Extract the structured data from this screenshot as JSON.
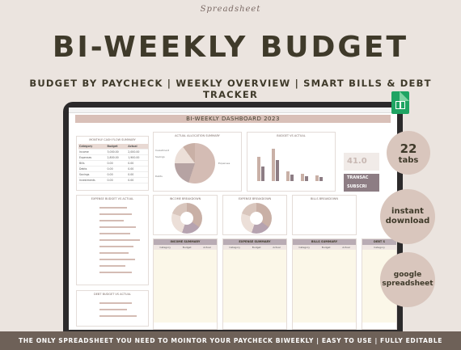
{
  "brand_script": "Spreadsheet",
  "title": "BI-WEEKLY BUDGET",
  "subtitle": "BUDGET BY PAYCHECK | WEEKLY OVERVIEW | SMART BILLS & DEBT TRACKER",
  "badges": {
    "tabs_count": "22",
    "tabs_label": "tabs",
    "instant_line1": "instant",
    "instant_line2": "download",
    "google_line1": "google",
    "google_line2": "spreadsheet"
  },
  "footer": "THE ONLY SPREADSHEET YOU NEED TO MOINTOR YOUR PAYCHECK BIWEEKLY | EASY TO USE | FULLY EDITABLE",
  "dashboard": {
    "title": "BI-WEEKLY DASHBOARD  2023",
    "cash_flow_title": "MONTHLY CASH FLOW SUMMARY",
    "cash_headers": [
      "Category",
      "Budget",
      "Actual"
    ],
    "cash_rows": [
      [
        "Income",
        "3,000.00",
        "2,000.00"
      ],
      [
        "Expenses",
        "2,800.00",
        "1,900.00"
      ],
      [
        "Bills",
        "0.00",
        "0.00"
      ],
      [
        "Debts",
        "0.00",
        "0.00"
      ],
      [
        "Savings",
        "0.00",
        "0.00"
      ],
      [
        "Investments",
        "0.00",
        "0.00"
      ]
    ],
    "alloc_title": "ACTUAL ALLOCATION SUMMARY",
    "alloc_label_investment": "Investment",
    "alloc_label_savings": "Savings",
    "alloc_label_expenses": "Expenses",
    "alloc_label_debts": "Debts",
    "bars_title": "BUDGET VS ACTUAL",
    "kpi_value": "41.0",
    "trans_label1": "TRANSAC",
    "trans_label2": "SUBSCRI",
    "expense_budget_title": "EXPENSE BUDGET VS ACTUAL",
    "income_breakdown_title": "INCOME BREAKDOWN",
    "expense_breakdown_title": "EXPENSE BREAKDOWN",
    "bills_breakdown_title": "BILLS BREAKDOWN",
    "debt_budget_title": "DEBT BUDGET VS ACTUAL",
    "income_summary": "INCOME SUMMARY",
    "expense_summary": "EXPENSE SUMMARY",
    "bills_summary": "BILLS SUMMARY",
    "debt_summary": "DEBT S",
    "col_category": "Category",
    "col_budget": "Budget",
    "col_actual": "Actual"
  }
}
